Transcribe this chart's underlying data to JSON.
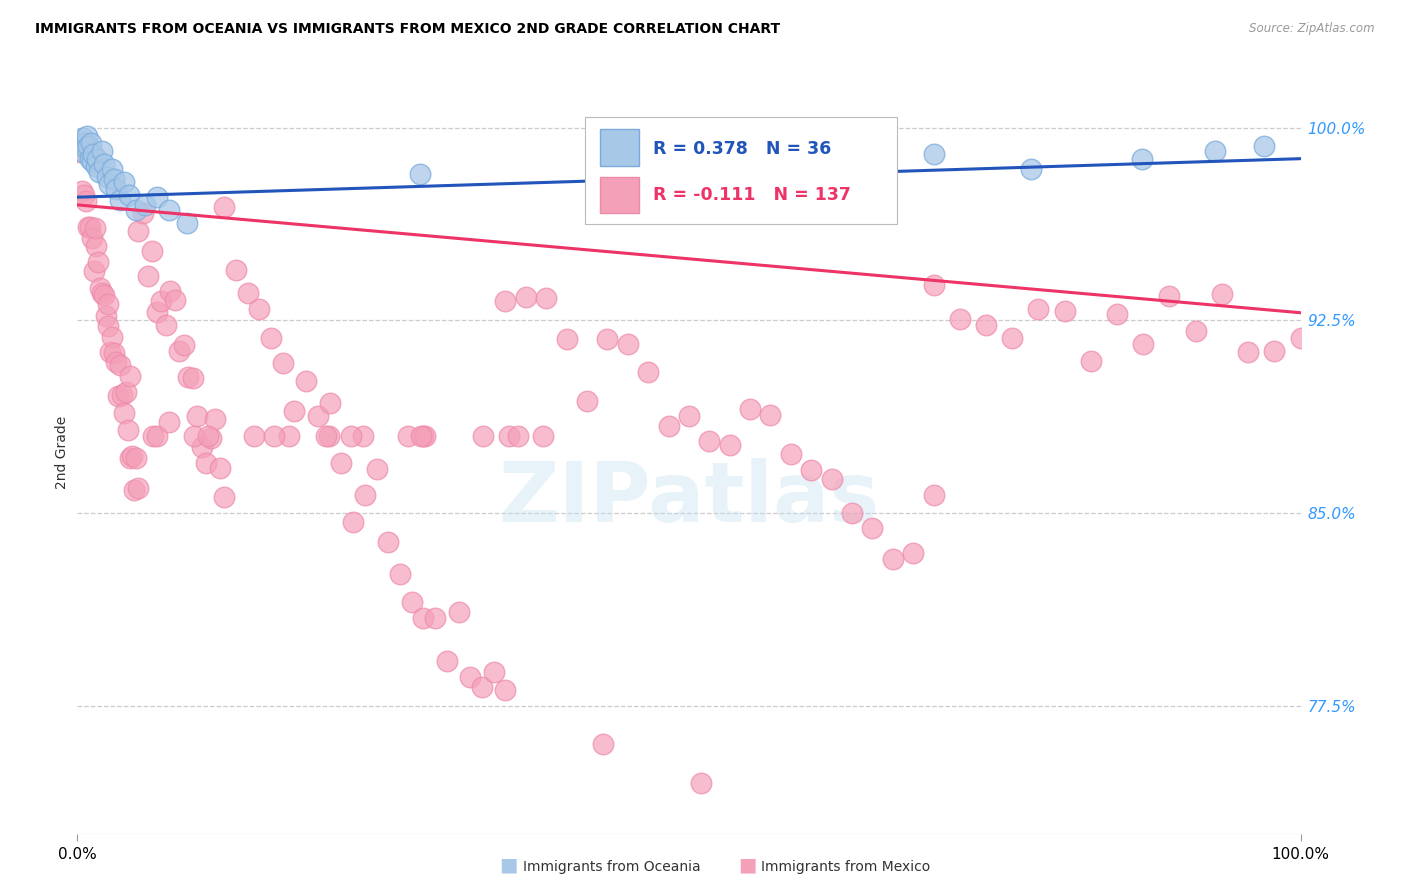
{
  "title": "IMMIGRANTS FROM OCEANIA VS IMMIGRANTS FROM MEXICO 2ND GRADE CORRELATION CHART",
  "source": "Source: ZipAtlas.com",
  "ylabel": "2nd Grade",
  "R_oceania": 0.378,
  "N_oceania": 36,
  "R_mexico": -0.111,
  "N_mexico": 137,
  "oceania_fill": "#a8c8e8",
  "oceania_edge": "#7aabdc",
  "mexico_fill": "#f4a0b8",
  "mexico_edge": "#ee8aaa",
  "trendline_oceania": "#2255bb",
  "trendline_mexico": "#ee3366",
  "grid_color": "#cccccc",
  "ytick_color": "#3399ff",
  "ytick_positions": [
    0.775,
    0.85,
    0.925,
    1.0
  ],
  "ytick_labels": [
    "77.5%",
    "85.0%",
    "92.5%",
    "100.0%"
  ],
  "xtick_left": "0.0%",
  "xtick_right": "100.0%",
  "legend_oceania": "Immigrants from Oceania",
  "legend_mexico": "Immigrants from Mexico",
  "xlim": [
    0.0,
    1.0
  ],
  "ylim": [
    0.725,
    1.022
  ],
  "watermark": "ZIPatlas"
}
